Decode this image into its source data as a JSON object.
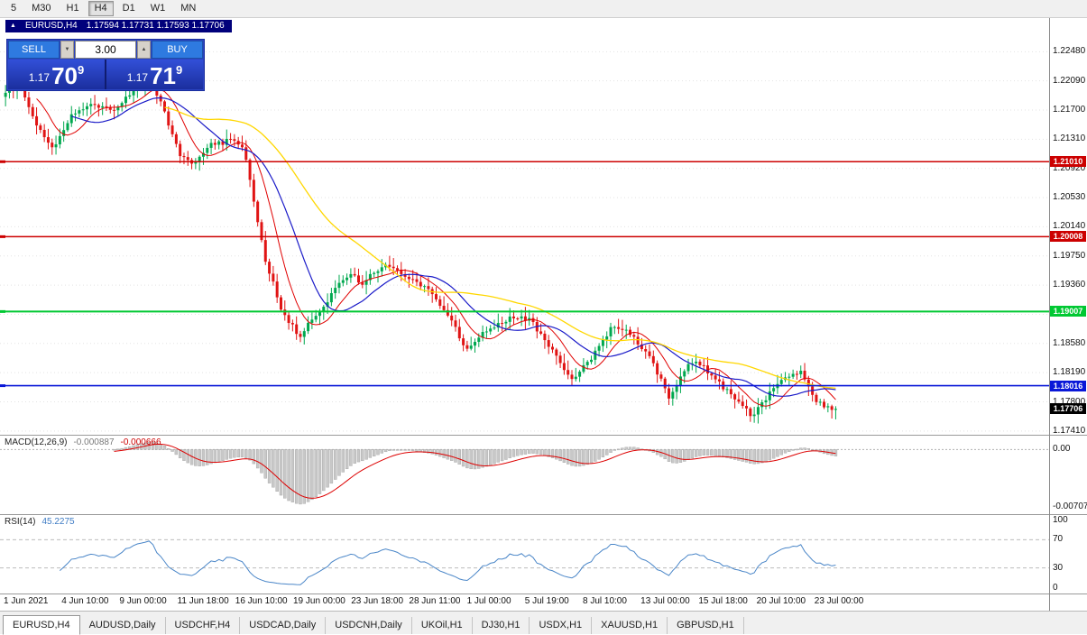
{
  "toolbar": {
    "periods": [
      {
        "label": "5",
        "active": false
      },
      {
        "label": "M30",
        "active": false
      },
      {
        "label": "H1",
        "active": false
      },
      {
        "label": "H4",
        "active": true
      },
      {
        "label": "D1",
        "active": false
      },
      {
        "label": "W1",
        "active": false
      },
      {
        "label": "MN",
        "active": false
      }
    ]
  },
  "chart_title": {
    "collapse_icon": "▲",
    "symbol": "EURUSD,H4",
    "values": "1.17594 1.17731 1.17593 1.17706"
  },
  "trade_panel": {
    "sell_label": "SELL",
    "buy_label": "BUY",
    "volume": "3.00",
    "stepper_down": "▼",
    "stepper_up": "▲",
    "sell_price": {
      "small": "1.17",
      "big": "70",
      "sup": "9"
    },
    "buy_price": {
      "small": "1.17",
      "big": "71",
      "sup": "9"
    }
  },
  "colors": {
    "candle_up": "#00a84f",
    "candle_down": "#e01414",
    "ma_fast_red": "#e00000",
    "ma_mid_blue": "#1a1ac8",
    "ma_slow_yellow": "#ffd700",
    "hline_red": "#cc0000",
    "hline_green": "#00c832",
    "hline_blue": "#0a18d8",
    "current_price_badge": "#000000",
    "panel_blue": "#2a43c2",
    "macd_histogram": "#c8c8c8",
    "macd_signal": "#dd0000",
    "rsi_line": "#4a86c8"
  },
  "chart_data": {
    "type": "candlestick",
    "symbol": "EURUSD",
    "timeframe": "H4",
    "ohlc_display": {
      "open": "1.17594",
      "high": "1.17731",
      "low": "1.17593",
      "close": "1.17706"
    },
    "price_axis": {
      "min": 1.1736,
      "max": 1.2293,
      "ticks": [
        "1.22480",
        "1.22090",
        "1.21700",
        "1.21310",
        "1.20920",
        "1.20530",
        "1.20140",
        "1.19750",
        "1.19360",
        "1.18970",
        "1.18580",
        "1.18190",
        "1.17800",
        "1.17410"
      ]
    },
    "candles": {
      "count": 215,
      "area_fraction": 0.795,
      "keyframes": [
        [
          0.0,
          1.219
        ],
        [
          0.015,
          1.2208
        ],
        [
          0.037,
          1.215
        ],
        [
          0.058,
          1.2118
        ],
        [
          0.08,
          1.2165
        ],
        [
          0.102,
          1.2178
        ],
        [
          0.129,
          1.217
        ],
        [
          0.156,
          1.22
        ],
        [
          0.175,
          1.221
        ],
        [
          0.194,
          1.216
        ],
        [
          0.21,
          1.2108
        ],
        [
          0.226,
          1.2098
        ],
        [
          0.248,
          1.2125
        ],
        [
          0.277,
          1.213
        ],
        [
          0.288,
          1.2115
        ],
        [
          0.3,
          1.204
        ],
        [
          0.315,
          1.196
        ],
        [
          0.335,
          1.1895
        ],
        [
          0.355,
          1.1868
        ],
        [
          0.38,
          1.19
        ],
        [
          0.4,
          1.1935
        ],
        [
          0.413,
          1.195
        ],
        [
          0.43,
          1.1938
        ],
        [
          0.459,
          1.1965
        ],
        [
          0.48,
          1.195
        ],
        [
          0.51,
          1.1928
        ],
        [
          0.538,
          1.1888
        ],
        [
          0.556,
          1.1848
        ],
        [
          0.575,
          1.1872
        ],
        [
          0.605,
          1.189
        ],
        [
          0.63,
          1.1893
        ],
        [
          0.655,
          1.1855
        ],
        [
          0.683,
          1.1808
        ],
        [
          0.71,
          1.1845
        ],
        [
          0.73,
          1.1878
        ],
        [
          0.755,
          1.1868
        ],
        [
          0.775,
          1.184
        ],
        [
          0.8,
          1.1785
        ],
        [
          0.825,
          1.1838
        ],
        [
          0.845,
          1.182
        ],
        [
          0.875,
          1.179
        ],
        [
          0.9,
          1.1762
        ],
        [
          0.925,
          1.18
        ],
        [
          0.957,
          1.1823
        ],
        [
          0.975,
          1.178
        ],
        [
          1.0,
          1.17706
        ]
      ]
    },
    "moving_averages": [
      {
        "period": 9,
        "color": "#e00000",
        "width": 1
      },
      {
        "period": 18,
        "color": "#1a1ac8",
        "width": 1.2
      },
      {
        "period": 42,
        "color": "#ffd700",
        "width": 1.3
      }
    ],
    "hlines": [
      {
        "label": "1.21010",
        "value": 1.2101,
        "color": "#cc0000",
        "width": 1.4
      },
      {
        "label": "1.20008",
        "value": 1.20008,
        "color": "#cc0000",
        "width": 1.4
      },
      {
        "label": "1.19007",
        "value": 1.19007,
        "color": "#00c832",
        "width": 2
      },
      {
        "label": "1.18016",
        "value": 1.18016,
        "color": "#0a18d8",
        "width": 1.6
      }
    ],
    "last_price": {
      "label": "1.17706",
      "value": 1.17706
    },
    "indicators": {
      "macd": {
        "title": "MACD(12,26,9)",
        "value_main": "-0.000887",
        "value_signal": "-0.000666",
        "fast": 12,
        "slow": 26,
        "signal": 9,
        "axis_zero": "0.00",
        "axis_min": "-0.00707"
      },
      "rsi": {
        "title": "RSI(14)",
        "value": "45.2275",
        "period": 14,
        "levels": [
          70,
          30
        ],
        "axis": [
          "100",
          "70",
          "30",
          "0"
        ]
      }
    },
    "time_axis": [
      "1 Jun 2021",
      "4 Jun 10:00",
      "9 Jun 00:00",
      "11 Jun 18:00",
      "16 Jun 10:00",
      "19 Jun 00:00",
      "23 Jun 18:00",
      "28 Jun 11:00",
      "1 Jul 00:00",
      "5 Jul 19:00",
      "8 Jul 10:00",
      "13 Jul 00:00",
      "15 Jul 18:00",
      "20 Jul 10:00",
      "23 Jul 00:00"
    ]
  },
  "tabs": [
    {
      "label": "EURUSD,H4",
      "active": true
    },
    {
      "label": "AUDUSD,Daily",
      "active": false
    },
    {
      "label": "USDCHF,H4",
      "active": false
    },
    {
      "label": "USDCAD,Daily",
      "active": false
    },
    {
      "label": "USDCNH,Daily",
      "active": false
    },
    {
      "label": "UKOil,H1",
      "active": false
    },
    {
      "label": "DJ30,H1",
      "active": false
    },
    {
      "label": "USDX,H1",
      "active": false
    },
    {
      "label": "XAUUSD,H1",
      "active": false
    },
    {
      "label": "GBPUSD,H1",
      "active": false
    }
  ]
}
